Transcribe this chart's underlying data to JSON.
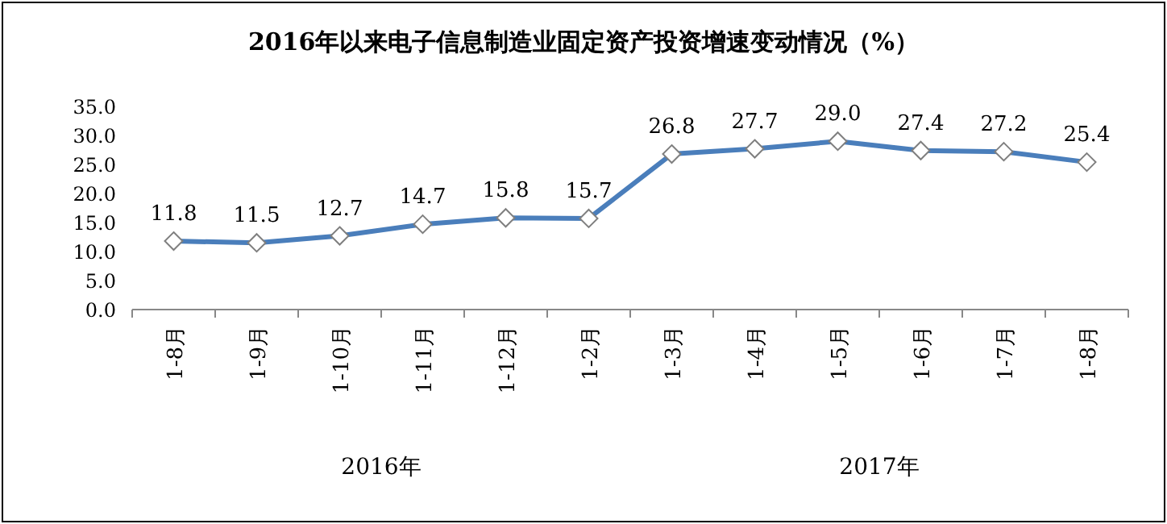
{
  "chart_data": {
    "type": "line",
    "title": "2016年以来电子信息制造业固定资产投资增速变动情况（%）",
    "categories": [
      "1-8月",
      "1-9月",
      "1-10月",
      "1-11月",
      "1-12月",
      "1-2月",
      "1-3月",
      "1-4月",
      "1-5月",
      "1-6月",
      "1-7月",
      "1-8月"
    ],
    "values": [
      11.8,
      11.5,
      12.7,
      14.7,
      15.8,
      15.7,
      26.8,
      27.7,
      29.0,
      27.4,
      27.2,
      25.4
    ],
    "value_labels": [
      "11.8",
      "11.5",
      "12.7",
      "14.7",
      "15.8",
      "15.7",
      "26.8",
      "27.7",
      "29.0",
      "27.4",
      "27.2",
      "25.4"
    ],
    "color": "#4a7ebb",
    "marker": "diamond",
    "grid": false,
    "ylim": [
      0,
      35
    ],
    "yticks": [
      {
        "value": 0,
        "label": "0.0"
      },
      {
        "value": 5,
        "label": "5.0"
      },
      {
        "value": 10,
        "label": "10.0"
      },
      {
        "value": 15,
        "label": "15.0"
      },
      {
        "value": 20,
        "label": "20.0"
      },
      {
        "value": 25,
        "label": "25.0"
      },
      {
        "value": 30,
        "label": "30.0"
      },
      {
        "value": 35,
        "label": "35.0"
      }
    ],
    "annotations": [
      "2016年",
      "2017年"
    ]
  }
}
